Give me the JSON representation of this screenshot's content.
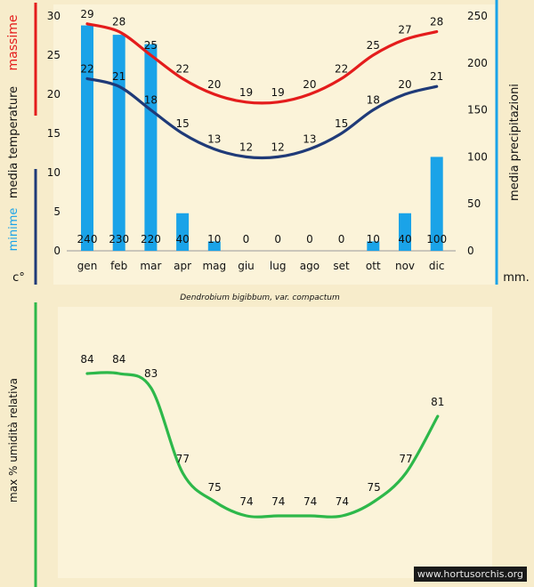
{
  "colors": {
    "background": "#f7eccb",
    "panel": "#fbf3d9",
    "max_line": "#e41c1c",
    "min_line": "#1f3a78",
    "bars": "#1aa3e8",
    "humidity_line": "#2db84a",
    "axis_blue": "#1aa3e8"
  },
  "chart_data": [
    {
      "type": "bar+line",
      "subtitle": "Dendrobium bigibbum, var. compactum",
      "categories": [
        "gen",
        "feb",
        "mar",
        "apr",
        "mag",
        "giu",
        "lug",
        "ago",
        "set",
        "ott",
        "nov",
        "dic"
      ],
      "series": [
        {
          "name": "massime",
          "type": "line",
          "axis": "left",
          "values": [
            29,
            28,
            25,
            22,
            20,
            19,
            19,
            20,
            22,
            25,
            27,
            28
          ]
        },
        {
          "name": "minime",
          "type": "line",
          "axis": "left",
          "values": [
            22,
            21,
            18,
            15,
            13,
            12,
            12,
            13,
            15,
            18,
            20,
            21
          ]
        },
        {
          "name": "media precipitazioni",
          "type": "bar",
          "axis": "right",
          "values": [
            240,
            230,
            220,
            40,
            10,
            0,
            0,
            0,
            0,
            10,
            40,
            100
          ]
        }
      ],
      "left_axis": {
        "ticks": [
          0,
          5,
          10,
          15,
          20,
          25,
          30
        ],
        "ylim": [
          0,
          30
        ],
        "unit": "c°"
      },
      "right_axis": {
        "ticks": [
          0,
          50,
          100,
          150,
          200,
          250
        ],
        "ylim": [
          0,
          250
        ],
        "unit": "mm."
      },
      "labels": {
        "massime": "massime",
        "media_temperature": "media temperature",
        "minime": "minime",
        "unit_left": "c°",
        "right": "media precipitazioni",
        "unit_right": "mm."
      }
    },
    {
      "type": "line",
      "ylabel": "max % umidità relativa",
      "categories": [
        "gen",
        "feb",
        "mar",
        "apr",
        "mag",
        "giu",
        "lug",
        "ago",
        "set",
        "ott",
        "nov",
        "dic"
      ],
      "values": [
        84,
        84,
        83,
        77,
        75,
        74,
        74,
        74,
        74,
        75,
        77,
        81
      ]
    }
  ],
  "watermark": "www.hortusorchis.org"
}
